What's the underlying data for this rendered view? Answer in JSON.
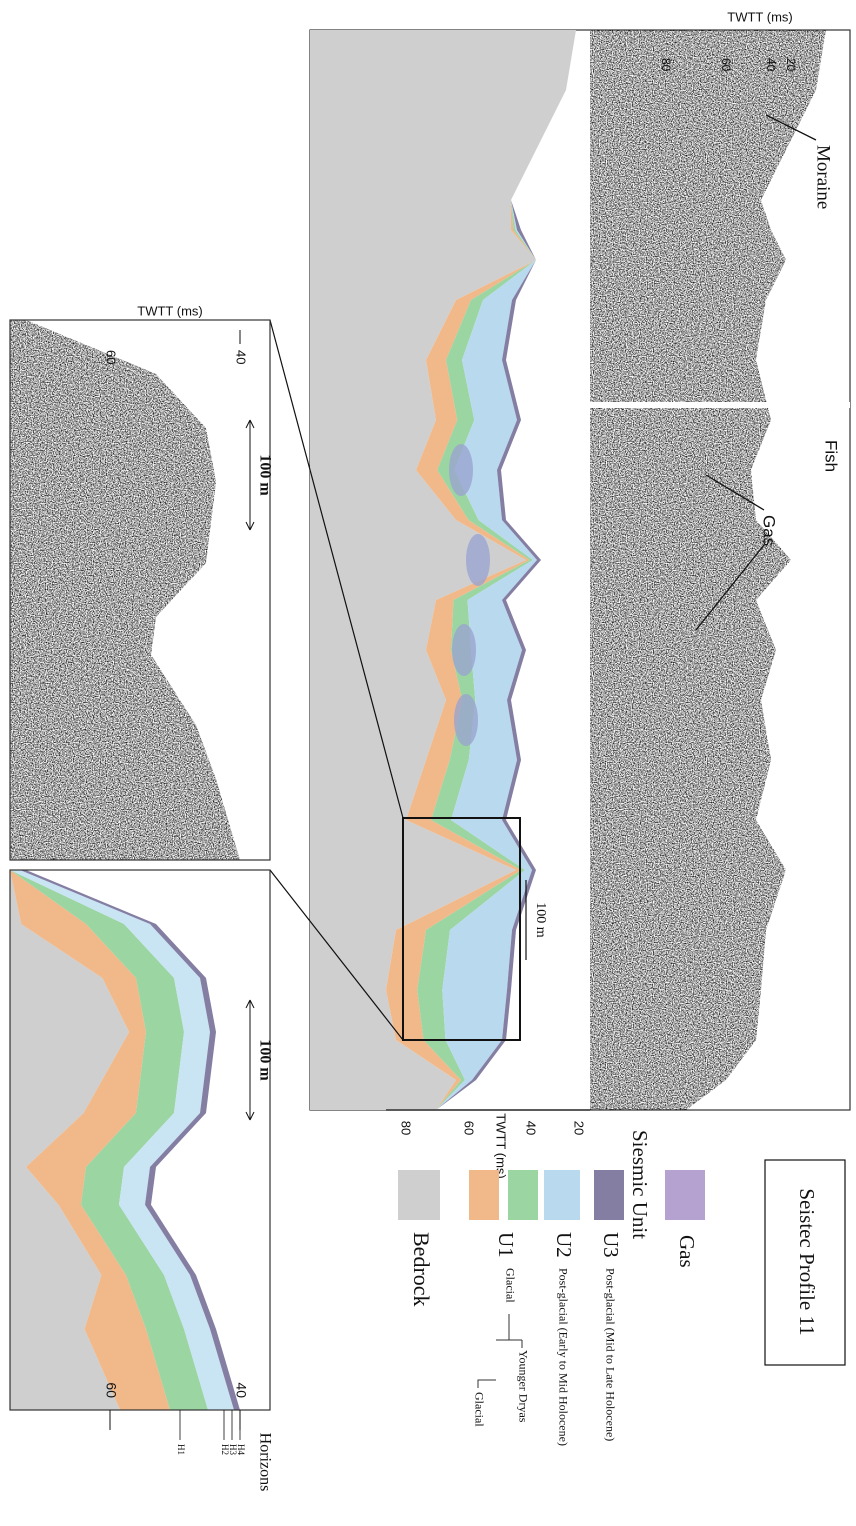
{
  "title": "Seistec Profile 11",
  "raw_profile": {
    "axis_title": "TWTT (ms)",
    "ticks": [
      20,
      40,
      60,
      80
    ],
    "labels": {
      "moraine": "Moraine",
      "fish": "Fish",
      "gas": "Gas"
    }
  },
  "interpreted_profile": {
    "axis_title": "TWTT (ms)",
    "ticks": [
      20,
      40,
      60,
      80
    ],
    "scale_bar": "100 m"
  },
  "legend": {
    "gas": "Gas",
    "heading": "Siesmic Unit",
    "units": [
      {
        "name": "U3",
        "description": "Post-glacial (Mid to Late Holocene)"
      },
      {
        "name": "U2",
        "description": "Post-glacial (Early to Mid Holocene)"
      },
      {
        "name": "U1",
        "description": "Glacial",
        "subunits": [
          "Younger Dryas",
          "Glacial"
        ]
      }
    ],
    "bedrock": "Bedrock"
  },
  "inset_raw": {
    "axis_title": "TWTT (ms)",
    "ticks": [
      40,
      60
    ],
    "scale_bar": "100 m"
  },
  "inset_interpreted": {
    "ticks": [
      40,
      60
    ],
    "scale_bar": "100 m",
    "horizons_title": "Horizons",
    "horizons": [
      "H4",
      "H3",
      "H2",
      "H1"
    ]
  }
}
